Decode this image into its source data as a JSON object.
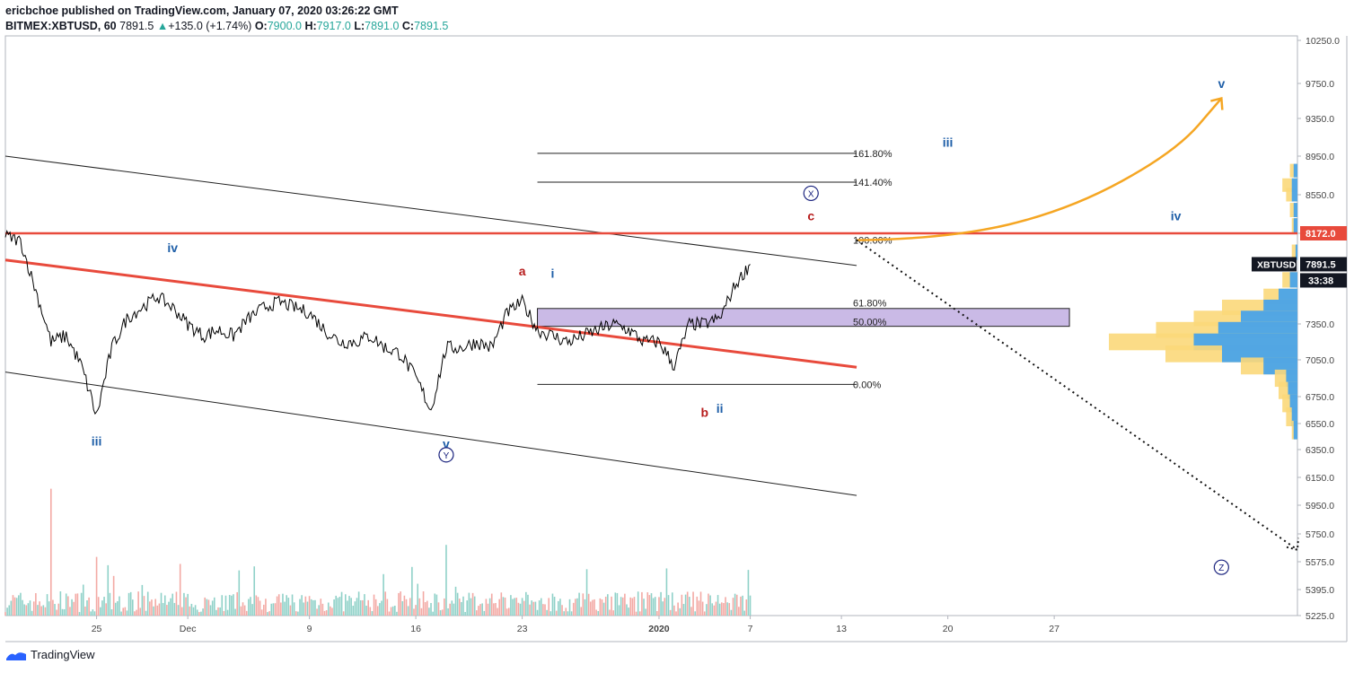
{
  "header": {
    "publish_line": "ericbchoe published on TradingView.com, January 07, 2020 03:26:22 GMT",
    "symbol": "BITMEX:XBTUSD, 60",
    "last": "7891.5",
    "change_arrow": "▲",
    "change": "+135.0 (+1.74%)",
    "o_label": "O:",
    "o_value": "7900.0",
    "h_label": "H:",
    "h_value": "7917.0",
    "l_label": "L:",
    "l_value": "7891.0",
    "c_label": "C:",
    "c_value": "7891.5"
  },
  "footer": {
    "brand": "TradingView"
  },
  "colors": {
    "up": "#26a69a",
    "resistance": "#e84a3c",
    "forecast": "#f5a623",
    "zone": "#b39ddb",
    "wave_blue": "#1f5fa8",
    "wave_red": "#b71c1c",
    "circle": "#1a237e"
  },
  "chart_data": {
    "type": "line",
    "title": "",
    "symbol": "BITMEX:XBTUSD",
    "interval": "60",
    "y_ticks": [
      10250.0,
      9750.0,
      9350.0,
      8950.0,
      8550.0,
      8172.0,
      7350.0,
      7050.0,
      6750.0,
      6550.0,
      6350.0,
      6150.0,
      5950.0,
      5750.0,
      5575.0,
      5395.0,
      5225.0
    ],
    "y_tick_labels": [
      "10250.0",
      "9750.0",
      "9350.0",
      "8950.0",
      "8550.0",
      "8172.0",
      "7350.0",
      "7050.0",
      "6750.0",
      "6550.0",
      "6350.0",
      "6150.0",
      "5950.0",
      "5750.0",
      "5575.0",
      "5395.0",
      "5225.0"
    ],
    "x_tick_labels": [
      "25",
      "Dec",
      "9",
      "16",
      "23",
      "2020",
      "7",
      "13",
      "20",
      "27"
    ],
    "x_tick_dates": [
      "2019-11-25",
      "2019-12-01",
      "2019-12-09",
      "2019-12-16",
      "2019-12-23",
      "2020-01-01",
      "2020-01-07",
      "2020-01-13",
      "2020-01-20",
      "2020-01-27"
    ],
    "x_range": [
      "2019-11-19",
      "2020-02-12"
    ],
    "price_series": {
      "name": "XBTUSD",
      "x": [
        "2019-11-19",
        "2019-11-20",
        "2019-11-21",
        "2019-11-22",
        "2019-11-23",
        "2019-11-24",
        "2019-11-25",
        "2019-11-26",
        "2019-11-27",
        "2019-11-28",
        "2019-11-29",
        "2019-11-30",
        "2019-12-01",
        "2019-12-02",
        "2019-12-03",
        "2019-12-04",
        "2019-12-05",
        "2019-12-06",
        "2019-12-07",
        "2019-12-08",
        "2019-12-09",
        "2019-12-10",
        "2019-12-11",
        "2019-12-12",
        "2019-12-13",
        "2019-12-14",
        "2019-12-15",
        "2019-12-16",
        "2019-12-17",
        "2019-12-18",
        "2019-12-19",
        "2019-12-20",
        "2019-12-21",
        "2019-12-22",
        "2019-12-23",
        "2019-12-24",
        "2019-12-25",
        "2019-12-26",
        "2019-12-27",
        "2019-12-28",
        "2019-12-29",
        "2019-12-30",
        "2019-12-31",
        "2020-01-01",
        "2020-01-02",
        "2020-01-03",
        "2020-01-04",
        "2020-01-05",
        "2020-01-06",
        "2020-01-07"
      ],
      "y": [
        8150,
        8100,
        7650,
        7200,
        7250,
        7000,
        6600,
        7150,
        7400,
        7500,
        7600,
        7500,
        7350,
        7250,
        7300,
        7250,
        7400,
        7500,
        7550,
        7500,
        7450,
        7300,
        7200,
        7200,
        7250,
        7150,
        7100,
        6900,
        6650,
        7150,
        7150,
        7200,
        7150,
        7450,
        7550,
        7300,
        7250,
        7200,
        7250,
        7300,
        7350,
        7300,
        7200,
        7200,
        7000,
        7350,
        7350,
        7400,
        7700,
        7891.5
      ]
    },
    "volume": {
      "x_range": [
        "2019-11-19",
        "2020-01-07"
      ],
      "max": 6200,
      "peaks": [
        {
          "x": "2019-11-22",
          "v": 6200
        },
        {
          "x": "2019-11-25",
          "v": 3300
        },
        {
          "x": "2019-12-18",
          "v": 3500
        }
      ]
    },
    "resistance_line": {
      "y": 8172.0,
      "label": "8172.0"
    },
    "last_price": {
      "label": "XBTUSD",
      "value": "7891.5",
      "countdown": "33:38"
    },
    "fib_levels": [
      {
        "ratio": "161.80%",
        "price": 8980
      },
      {
        "ratio": "141.40%",
        "price": 8680
      },
      {
        "ratio": "100.00%",
        "price": 8110
      },
      {
        "ratio": "61.80%",
        "price": 7540
      },
      {
        "ratio": "50.00%",
        "price": 7370
      },
      {
        "ratio": "0.00%",
        "price": 6850
      }
    ],
    "fib_range": {
      "from": "2019-12-24",
      "to": "2020-01-14"
    },
    "zone": {
      "from": "2019-12-24",
      "to": "2020-01-28",
      "top": 7490,
      "bottom": 7330
    },
    "channel_lines": [
      {
        "role": "upper",
        "x1": "2019-11-19",
        "y1": 8950,
        "x2": "2020-01-14",
        "y2": 7880
      },
      {
        "role": "lower",
        "x1": "2019-11-19",
        "y1": 6950,
        "x2": "2020-01-14",
        "y2": 6020
      },
      {
        "role": "mid-red",
        "x1": "2019-11-19",
        "y1": 7930,
        "x2": "2020-01-14",
        "y2": 6990
      }
    ],
    "forecast_up": {
      "points": [
        [
          "2020-01-14",
          8110
        ],
        [
          "2020-01-20",
          8120
        ],
        [
          "2020-01-28",
          8400
        ],
        [
          "2020-02-04",
          9000
        ],
        [
          "2020-02-07",
          9580
        ]
      ]
    },
    "forecast_down": {
      "points": [
        [
          "2020-01-14",
          8110
        ],
        [
          "2020-02-12",
          5650
        ]
      ]
    },
    "volume_profile": {
      "price_range": [
        6450,
        8900
      ],
      "bins": [
        {
          "price": 8800,
          "a": 4,
          "b": 2
        },
        {
          "price": 8650,
          "a": 8,
          "b": 3
        },
        {
          "price": 8550,
          "a": 6,
          "b": 3
        },
        {
          "price": 8400,
          "a": 4,
          "b": 2
        },
        {
          "price": 8250,
          "a": 3,
          "b": 2
        },
        {
          "price": 8000,
          "a": 3,
          "b": 1
        },
        {
          "price": 7750,
          "a": 8,
          "b": 4
        },
        {
          "price": 7600,
          "a": 18,
          "b": 10
        },
        {
          "price": 7500,
          "a": 40,
          "b": 18
        },
        {
          "price": 7400,
          "a": 55,
          "b": 30
        },
        {
          "price": 7300,
          "a": 75,
          "b": 42
        },
        {
          "price": 7200,
          "a": 100,
          "b": 55
        },
        {
          "price": 7100,
          "a": 70,
          "b": 40
        },
        {
          "price": 7000,
          "a": 30,
          "b": 18
        },
        {
          "price": 6900,
          "a": 12,
          "b": 6
        },
        {
          "price": 6800,
          "a": 10,
          "b": 5
        },
        {
          "price": 6700,
          "a": 8,
          "b": 4
        },
        {
          "price": 6600,
          "a": 6,
          "b": 3
        },
        {
          "price": 6500,
          "a": 3,
          "b": 2
        }
      ]
    },
    "annotations": [
      {
        "text": "iv",
        "x": "2019-11-30",
        "y": 8000,
        "color": "blue"
      },
      {
        "text": "iii",
        "x": "2019-11-25",
        "y": 6380,
        "color": "blue"
      },
      {
        "text": "v",
        "x": "2019-12-18",
        "y": 6360,
        "color": "blue"
      },
      {
        "text": "Y",
        "x": "2019-12-18",
        "y": 6280,
        "color": "circle"
      },
      {
        "text": "a",
        "x": "2019-12-23",
        "y": 7790,
        "color": "red"
      },
      {
        "text": "i",
        "x": "2019-12-25",
        "y": 7770,
        "color": "blue"
      },
      {
        "text": "b",
        "x": "2020-01-04",
        "y": 6600,
        "color": "red"
      },
      {
        "text": "ii",
        "x": "2020-01-05",
        "y": 6630,
        "color": "blue"
      },
      {
        "text": "c",
        "x": "2020-01-11",
        "y": 8300,
        "color": "red"
      },
      {
        "text": "X",
        "x": "2020-01-11",
        "y": 8520,
        "color": "circle"
      },
      {
        "text": "iii",
        "x": "2020-01-20",
        "y": 9050,
        "color": "blue"
      },
      {
        "text": "v",
        "x": "2020-02-07",
        "y": 9700,
        "color": "blue"
      },
      {
        "text": "iv",
        "x": "2020-02-04",
        "y": 8300,
        "color": "blue"
      },
      {
        "text": "Z",
        "x": "2020-02-07",
        "y": 5510,
        "color": "circle"
      }
    ]
  }
}
